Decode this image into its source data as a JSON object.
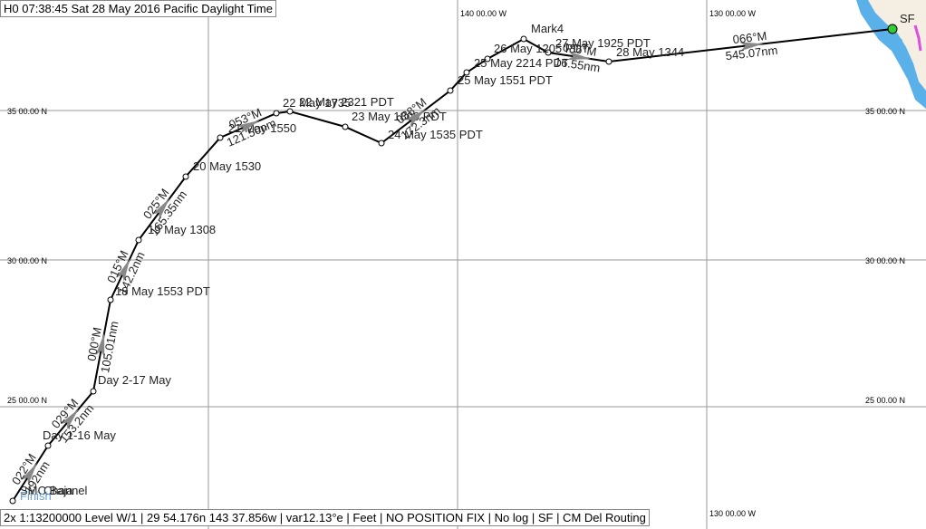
{
  "header": {
    "title": "H0 07:38:45 Sat 28 May 2016 Pacific Daylight Time"
  },
  "status_bar": {
    "text": "2x 1:13200000 Level W/1 | 29 54.176n 143 37.856w | var12.13°e | Feet | NO POSITION FIX | No log | SF | CM Del Routing"
  },
  "grid_labels": {
    "longitudes": [
      "140 00.00 W",
      "130 00.00 W",
      "130 00.00 W"
    ],
    "latitudes": [
      "35 00.00 N",
      "30 00.00 N",
      "25 00.00 N",
      "35 00.00 N",
      "30 00.00 N",
      "25 00.00 N"
    ]
  },
  "waypoints": [
    "SMC Baja",
    "Channel",
    "Finish",
    "Day 1-16 May",
    "Day 2-17 May",
    "18 May 1553 PDT",
    "19 May 1308",
    "20 May 1530",
    "21 May 1550",
    "22 May 1735",
    "22 May 2321 PDT",
    "23 May 1800 PDT",
    "24 May 1535 PDT",
    "25 May 1551 PDT",
    "25 May 2214 PDT",
    "26 May 1205 PDT",
    "Mark4",
    "27 May 1925 PDT",
    "28 May 1344",
    "SF"
  ],
  "legs": [
    {
      "bearing": "022°M",
      "distance": "192nm"
    },
    {
      "bearing": "029°M",
      "distance": "153.2nm"
    },
    {
      "bearing": "000°M",
      "distance": "105.01nm"
    },
    {
      "bearing": "015°M",
      "distance": "142.2nm"
    },
    {
      "bearing": "025°M",
      "distance": "165.35nm"
    },
    {
      "bearing": "053°M",
      "distance": "121.50nm"
    },
    {
      "bearing": "038°M",
      "distance": "172.3nm"
    },
    {
      "bearing": "086°M",
      "distance": "16.55nm"
    },
    {
      "bearing": "066°M",
      "distance": "545.07nm"
    }
  ]
}
